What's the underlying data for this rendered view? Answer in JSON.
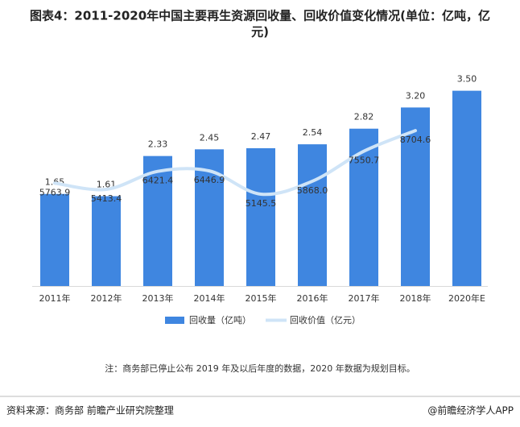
{
  "chart_data": {
    "type": "bar_line",
    "title": "图表4：2011-2020年中国主要再生资源回收量、回收价值变化情况(单位：亿吨，亿",
    "title_line2": "元)",
    "categories": [
      "2011年",
      "2012年",
      "2013年",
      "2014年",
      "2015年",
      "2016年",
      "2017年",
      "2018年",
      "2020年E"
    ],
    "series": [
      {
        "name": "回收量（亿吨）",
        "color": "#3f86e0",
        "type": "bar",
        "values": [
          1.65,
          1.61,
          2.33,
          2.45,
          2.47,
          2.54,
          2.82,
          3.2,
          3.5
        ],
        "value_labels": [
          "1.65",
          "1.61",
          "2.33",
          "2.45",
          "2.47",
          "2.54",
          "2.82",
          "3.20",
          "3.50"
        ]
      },
      {
        "name": "回收价值（亿元）",
        "color": "#cfe4f7",
        "type": "line",
        "axis": "y2",
        "values": [
          5763.9,
          5413.4,
          6421.4,
          6446.9,
          5145.5,
          5868.0,
          7550.7,
          8704.6,
          null
        ],
        "value_labels": [
          "5763.9",
          "5413.4",
          "6421.4",
          "6446.9",
          "5145.5",
          "5868.0",
          "7550.7",
          "8704.6",
          null
        ]
      }
    ],
    "ylim": [
      0,
      4
    ],
    "y2lim": [
      0,
      12500
    ],
    "note": "注：商务部已停止公布 2019 年及以后年度的数据，2020 年数据为规划目标。",
    "source": "资料来源：商务部 前瞻产业研究院整理",
    "brand": "@前瞻经济学人APP"
  }
}
